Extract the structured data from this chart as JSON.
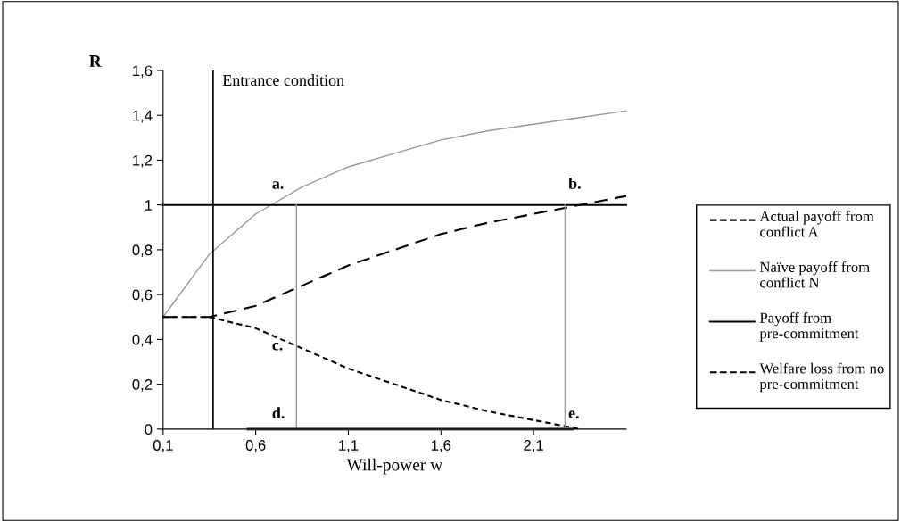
{
  "chart_data": {
    "type": "line",
    "xlabel": "Will-power w",
    "ylabel": "R",
    "xlim": [
      0.1,
      2.6
    ],
    "xticks": [
      {
        "value": 0.1,
        "label": "0,1"
      },
      {
        "value": 0.6,
        "label": "0,6"
      },
      {
        "value": 1.1,
        "label": "1,1"
      },
      {
        "value": 1.6,
        "label": "1,6"
      },
      {
        "value": 2.1,
        "label": "2,1"
      }
    ],
    "ylim": [
      0,
      1.6
    ],
    "yticks": [
      {
        "value": 0,
        "label": "0"
      },
      {
        "value": 0.2,
        "label": "0,2"
      },
      {
        "value": 0.4,
        "label": "0,4"
      },
      {
        "value": 0.6,
        "label": "0,6"
      },
      {
        "value": 0.8,
        "label": "0,8"
      },
      {
        "value": 1,
        "label": "1"
      },
      {
        "value": 1.2,
        "label": "1,2"
      },
      {
        "value": 1.4,
        "label": "1,4"
      },
      {
        "value": 1.6,
        "label": "1,6"
      }
    ],
    "series": [
      {
        "name": "Actual payoff from conflict A",
        "color": "#000000",
        "line_style": "dashed",
        "x": [
          0.1,
          0.35,
          0.6,
          0.85,
          1.1,
          1.35,
          1.6,
          1.85,
          2.1,
          2.35,
          2.6
        ],
        "values": [
          0.5,
          0.5,
          0.55,
          0.64,
          0.73,
          0.8,
          0.87,
          0.92,
          0.96,
          1.0,
          1.04
        ]
      },
      {
        "name": "Naïve payoff from conflict N",
        "color": "#999999",
        "line_style": "solid",
        "x": [
          0.1,
          0.35,
          0.6,
          0.85,
          1.1,
          1.35,
          1.6,
          1.85,
          2.1,
          2.35,
          2.6
        ],
        "values": [
          0.5,
          0.78,
          0.96,
          1.08,
          1.17,
          1.23,
          1.29,
          1.33,
          1.36,
          1.39,
          1.42
        ]
      },
      {
        "name": "Payoff from pre-commitment",
        "color": "#000000",
        "line_style": "solid",
        "x": [
          0.1,
          2.6
        ],
        "values": [
          1,
          1
        ]
      },
      {
        "name": "Welfare loss from no pre-commitment",
        "color": "#000000",
        "line_style": "dotted",
        "x": [
          0.1,
          0.35,
          0.6,
          0.85,
          1.1,
          1.35,
          1.6,
          1.85,
          2.1,
          2.35
        ],
        "values": [
          0.5,
          0.5,
          0.45,
          0.36,
          0.27,
          0.2,
          0.13,
          0.08,
          0.04,
          0.0
        ]
      },
      {
        "color": "#999999",
        "line_style": "solid",
        "x": [
          0.82,
          0.82
        ],
        "values": [
          0,
          1
        ]
      },
      {
        "color": "#999999",
        "line_style": "solid",
        "x": [
          2.27,
          2.27
        ],
        "values": [
          0,
          1
        ]
      },
      {
        "color": "#555555",
        "line_style": "solid",
        "x": [
          0.56,
          2.31
        ],
        "values": [
          0,
          0
        ]
      }
    ],
    "ref_lines": [
      {
        "axis": "x",
        "value": 0.37,
        "label": "Entrance condition",
        "color": "#000000"
      }
    ],
    "annotations": [
      "a.",
      "b.",
      "c.",
      "d.",
      "e."
    ],
    "legend": "right",
    "grid": false,
    "marker": "none"
  }
}
